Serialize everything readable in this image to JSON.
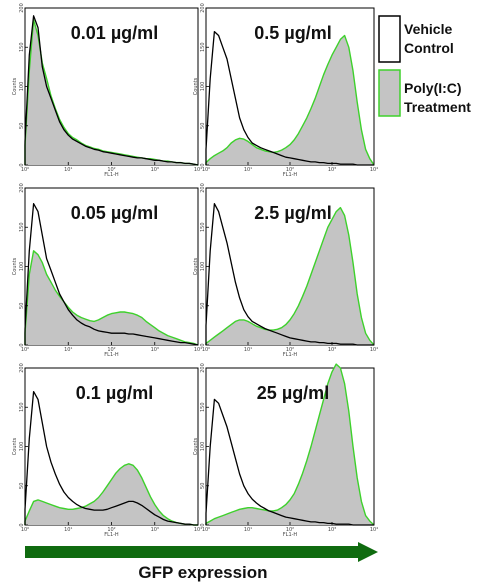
{
  "chart_data": {
    "type": "area",
    "grid": false,
    "legend_position": "right",
    "x_scale": "log",
    "xlim": [
      1,
      10000
    ],
    "x_tick_labels": [
      "10⁰",
      "10¹",
      "10²",
      "10³",
      "10⁴"
    ],
    "y_tick_labels": [
      "0",
      "50",
      "100",
      "150",
      "200"
    ],
    "xlabel": "FL1-H",
    "ylabel": "Counts",
    "figure_xlabel": "GFP expression",
    "legend": [
      {
        "label": "Vehicle Control",
        "color": "#000000",
        "fill": "none"
      },
      {
        "label": "Poly(I:C) Treatment",
        "color": "#3ed12c",
        "fill": "#c4c4c4"
      }
    ],
    "bins_log10": [
      0.0,
      0.1,
      0.2,
      0.3,
      0.4,
      0.5,
      0.6,
      0.7,
      0.8,
      0.9,
      1.0,
      1.1,
      1.2,
      1.3,
      1.4,
      1.5,
      1.6,
      1.7,
      1.8,
      1.9,
      2.0,
      2.1,
      2.2,
      2.3,
      2.4,
      2.5,
      2.6,
      2.7,
      2.8,
      2.9,
      3.0,
      3.1,
      3.2,
      3.3,
      3.4,
      3.5,
      3.6,
      3.7,
      3.8,
      3.9,
      4.0
    ],
    "panels": [
      {
        "title": "0.01 µg/ml",
        "series": [
          {
            "name": "Vehicle Control",
            "values": [
              30,
              140,
              190,
              175,
              125,
              100,
              85,
              70,
              55,
              45,
              38,
              33,
              30,
              27,
              24,
              22,
              20,
              19,
              17,
              16,
              15,
              14,
              13,
              12,
              11,
              10,
              9,
              9,
              8,
              7,
              6,
              6,
              5,
              4,
              4,
              3,
              3,
              2,
              2,
              1,
              0
            ]
          },
          {
            "name": "Poly(I:C) Treatment",
            "values": [
              25,
              120,
              185,
              165,
              130,
              110,
              88,
              72,
              58,
              48,
              40,
              35,
              32,
              28,
              25,
              23,
              21,
              20,
              18,
              17,
              16,
              15,
              14,
              13,
              12,
              11,
              10,
              9,
              8,
              8,
              7,
              6,
              5,
              5,
              4,
              3,
              3,
              2,
              2,
              1,
              0
            ]
          }
        ]
      },
      {
        "title": "0.5 µg/ml",
        "series": [
          {
            "name": "Vehicle Control",
            "values": [
              20,
              110,
              170,
              165,
              150,
              135,
              110,
              85,
              60,
              45,
              35,
              28,
              25,
              22,
              20,
              18,
              16,
              14,
              12,
              10,
              9,
              8,
              7,
              6,
              5,
              4,
              4,
              3,
              3,
              2,
              2,
              2,
              1,
              1,
              1,
              1,
              0,
              0,
              0,
              0,
              0
            ]
          },
          {
            "name": "Poly(I:C) Treatment",
            "values": [
              3,
              8,
              12,
              15,
              18,
              22,
              28,
              32,
              34,
              33,
              30,
              26,
              22,
              20,
              18,
              17,
              16,
              17,
              19,
              22,
              26,
              32,
              40,
              50,
              60,
              72,
              85,
              100,
              115,
              128,
              140,
              150,
              160,
              165,
              150,
              120,
              80,
              45,
              20,
              8,
              0
            ]
          }
        ]
      },
      {
        "title": "0.05 µg/ml",
        "series": [
          {
            "name": "Vehicle Control",
            "values": [
              20,
              120,
              180,
              170,
              140,
              110,
              95,
              80,
              65,
              55,
              45,
              38,
              32,
              28,
              25,
              23,
              20,
              18,
              17,
              16,
              15,
              15,
              15,
              15,
              14,
              14,
              13,
              12,
              11,
              10,
              9,
              8,
              7,
              6,
              5,
              4,
              3,
              3,
              2,
              1,
              0
            ]
          },
          {
            "name": "Poly(I:C) Treatment",
            "values": [
              15,
              90,
              120,
              115,
              105,
              90,
              80,
              70,
              62,
              55,
              48,
              42,
              38,
              35,
              33,
              31,
              30,
              32,
              35,
              38,
              40,
              41,
              42,
              42,
              41,
              40,
              38,
              35,
              30,
              26,
              22,
              18,
              15,
              12,
              10,
              8,
              6,
              4,
              3,
              2,
              0
            ]
          }
        ]
      },
      {
        "title": "2.5 µg/ml",
        "series": [
          {
            "name": "Vehicle Control",
            "values": [
              25,
              120,
              180,
              170,
              150,
              130,
              105,
              80,
              60,
              45,
              36,
              30,
              27,
              24,
              21,
              19,
              17,
              15,
              13,
              11,
              9,
              8,
              7,
              6,
              5,
              4,
              4,
              3,
              3,
              2,
              2,
              2,
              1,
              1,
              1,
              1,
              0,
              0,
              0,
              0,
              0
            ]
          },
          {
            "name": "Poly(I:C) Treatment",
            "values": [
              2,
              6,
              10,
              14,
              18,
              22,
              26,
              30,
              32,
              32,
              30,
              27,
              24,
              22,
              20,
              19,
              19,
              20,
              22,
              26,
              32,
              40,
              50,
              62,
              75,
              90,
              105,
              120,
              135,
              150,
              160,
              170,
              175,
              165,
              140,
              105,
              65,
              35,
              15,
              6,
              0
            ]
          }
        ]
      },
      {
        "title": "0.1 µg/ml",
        "series": [
          {
            "name": "Vehicle Control",
            "values": [
              20,
              110,
              170,
              160,
              130,
              100,
              80,
              65,
              52,
              42,
              35,
              30,
              26,
              23,
              21,
              20,
              19,
              19,
              19,
              20,
              22,
              24,
              26,
              28,
              30,
              30,
              28,
              25,
              21,
              17,
              13,
              10,
              7,
              5,
              4,
              3,
              2,
              1,
              1,
              0,
              0
            ]
          },
          {
            "name": "Poly(I:C) Treatment",
            "values": [
              5,
              18,
              30,
              32,
              30,
              28,
              26,
              24,
              22,
              21,
              20,
              20,
              21,
              22,
              24,
              27,
              30,
              35,
              42,
              50,
              58,
              66,
              72,
              76,
              78,
              76,
              70,
              60,
              48,
              36,
              26,
              18,
              12,
              8,
              5,
              3,
              2,
              1,
              1,
              0,
              0
            ]
          }
        ]
      },
      {
        "title": "25 µg/ml",
        "series": [
          {
            "name": "Vehicle Control",
            "values": [
              15,
              100,
              160,
              155,
              140,
              125,
              105,
              85,
              65,
              50,
              40,
              33,
              28,
              24,
              21,
              18,
              16,
              14,
              12,
              10,
              9,
              8,
              7,
              6,
              5,
              4,
              4,
              3,
              3,
              2,
              2,
              1,
              1,
              1,
              1,
              0,
              0,
              0,
              0,
              0,
              0
            ]
          },
          {
            "name": "Poly(I:C) Treatment",
            "values": [
              2,
              5,
              8,
              10,
              12,
              14,
              16,
              18,
              20,
              21,
              22,
              22,
              21,
              20,
              19,
              18,
              18,
              19,
              22,
              26,
              32,
              40,
              52,
              66,
              82,
              100,
              120,
              140,
              160,
              180,
              195,
              205,
              200,
              180,
              145,
              100,
              60,
              30,
              12,
              5,
              0
            ]
          }
        ]
      }
    ]
  },
  "colors": {
    "vehicle_line": "#000000",
    "treatment_line": "#3ed12c",
    "treatment_fill": "#c4c4c4",
    "arrow": "#0f6b0f"
  }
}
